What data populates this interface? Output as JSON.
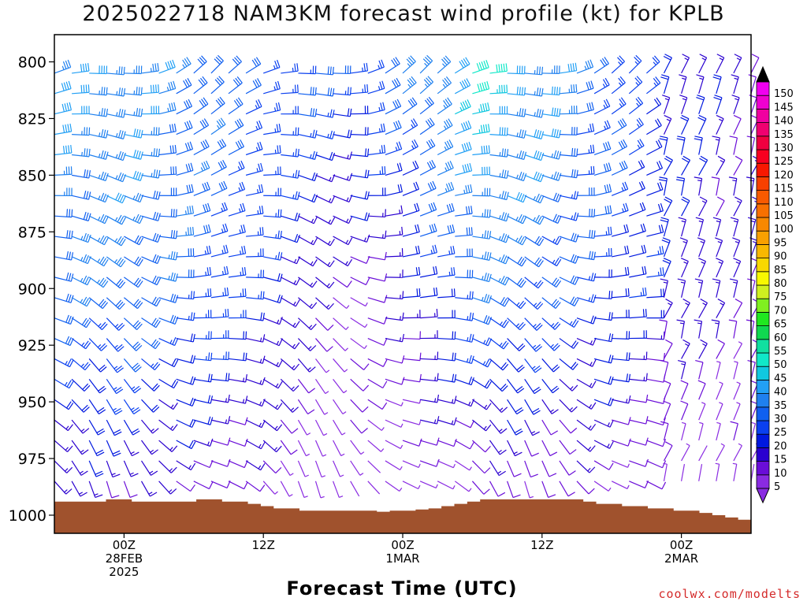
{
  "chart_data": {
    "type": "wind_barb_profile",
    "title": "2025022718 NAM3KM forecast wind profile (kt) for KPLB",
    "xlabel": "Forecast Time (UTC)",
    "ylabel": "",
    "credit": "coolwx.com/modelts",
    "y_axis": {
      "range": [
        1008,
        788
      ],
      "ticks": [
        "800",
        "825",
        "850",
        "875",
        "900",
        "925",
        "950",
        "975",
        "1000"
      ]
    },
    "x_axis": {
      "range_hours_since_start": [
        0,
        60
      ],
      "ticks": [
        {
          "hour": 6,
          "lines": [
            "00Z",
            "28FEB",
            "2025"
          ]
        },
        {
          "hour": 18,
          "lines": [
            "12Z"
          ]
        },
        {
          "hour": 30,
          "lines": [
            "00Z",
            "1MAR"
          ]
        },
        {
          "hour": 42,
          "lines": [
            "12Z"
          ]
        },
        {
          "hour": 54,
          "lines": [
            "00Z",
            "2MAR"
          ]
        }
      ]
    },
    "colorbar": {
      "labels": [
        "5",
        "10",
        "15",
        "20",
        "25",
        "30",
        "35",
        "40",
        "45",
        "50",
        "55",
        "60",
        "65",
        "70",
        "75",
        "80",
        "85",
        "90",
        "95",
        "100",
        "105",
        "110",
        "115",
        "120",
        "125",
        "130",
        "135",
        "140",
        "145",
        "150"
      ],
      "colors": [
        "#8a2be2",
        "#6a0dd8",
        "#2a00d0",
        "#0018e0",
        "#0a40f0",
        "#1060f0",
        "#1f80ef",
        "#22a0f5",
        "#10c8e0",
        "#10e8c8",
        "#10e0a0",
        "#10d850",
        "#20e820",
        "#80f020",
        "#d0f020",
        "#f8f800",
        "#f8d800",
        "#f8b800",
        "#f8a000",
        "#f88800",
        "#f87000",
        "#f85a00",
        "#f84000",
        "#f81800",
        "#f80020",
        "#f00040",
        "#f00070",
        "#f000a0",
        "#f000d0",
        "#f000f0"
      ]
    },
    "terrain_color": "#a0522d",
    "terrain_pressure": [
      994,
      994,
      994,
      994,
      993,
      993,
      994,
      994,
      994,
      994,
      994,
      993,
      993,
      994,
      994,
      995,
      996,
      997,
      997,
      998,
      998,
      998,
      998,
      998,
      998,
      998.5,
      998,
      998,
      997.5,
      997,
      996,
      995,
      994,
      993,
      993,
      993,
      993,
      993,
      993,
      993,
      993,
      994,
      995,
      995,
      996,
      996,
      997,
      997,
      998,
      998,
      999,
      1000,
      1001,
      1002
    ],
    "wind_levels_hpa": [
      810,
      800,
      810,
      825,
      835,
      845,
      855,
      865,
      875,
      885,
      895,
      905,
      915,
      925,
      935,
      945,
      955,
      965,
      975,
      985
    ],
    "wind_speed_kt_by_hour": [
      {
        "hour": 0,
        "low": 15,
        "mid": 35,
        "high": 40
      },
      {
        "hour": 6,
        "low": 15,
        "mid": 35,
        "high": 40
      },
      {
        "hour": 12,
        "low": 12,
        "mid": 30,
        "high": 35
      },
      {
        "hour": 18,
        "low": 10,
        "mid": 25,
        "high": 30
      },
      {
        "hour": 24,
        "low": 5,
        "mid": 10,
        "high": 30
      },
      {
        "hour": 30,
        "low": 5,
        "mid": 20,
        "high": 35
      },
      {
        "hour": 36,
        "low": 10,
        "mid": 35,
        "high": 50
      },
      {
        "hour": 42,
        "low": 10,
        "mid": 30,
        "high": 40
      },
      {
        "hour": 48,
        "low": 10,
        "mid": 25,
        "high": 30
      },
      {
        "hour": 54,
        "low": 5,
        "mid": 20,
        "high": 20
      },
      {
        "hour": 60,
        "low": 5,
        "mid": 15,
        "high": 15
      }
    ]
  }
}
